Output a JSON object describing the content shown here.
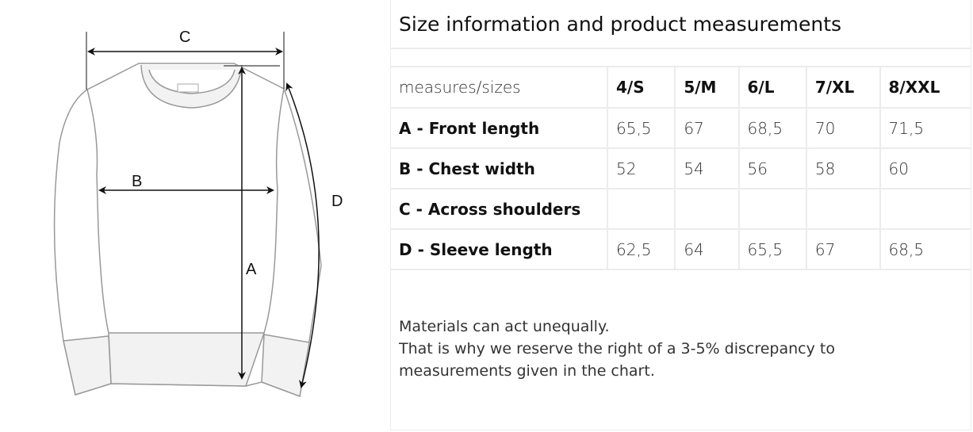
{
  "diagram": {
    "labels": {
      "a": "A",
      "b": "B",
      "c": "C",
      "d": "D"
    }
  },
  "title": "Size information and product measurements",
  "table": {
    "header": [
      "measures/sizes",
      "4/S",
      "5/M",
      "6/L",
      "7/XL",
      "8/XXL"
    ],
    "rows": [
      {
        "label": "A - Front length",
        "values": [
          "65,5",
          "67",
          "68,5",
          "70",
          "71,5"
        ]
      },
      {
        "label": "B - Chest width",
        "values": [
          "52",
          "54",
          "56",
          "58",
          "60"
        ]
      },
      {
        "label": "C - Across shoulders",
        "values": [
          "",
          "",
          "",
          "",
          ""
        ]
      },
      {
        "label": "D - Sleeve length",
        "values": [
          "62,5",
          "64",
          "65,5",
          "67",
          "68,5"
        ]
      }
    ]
  },
  "note": {
    "line1": "Materials can act unequally.",
    "line2": "That is why we reserve the right of a 3-5% discrepancy to measurements given in the chart."
  }
}
